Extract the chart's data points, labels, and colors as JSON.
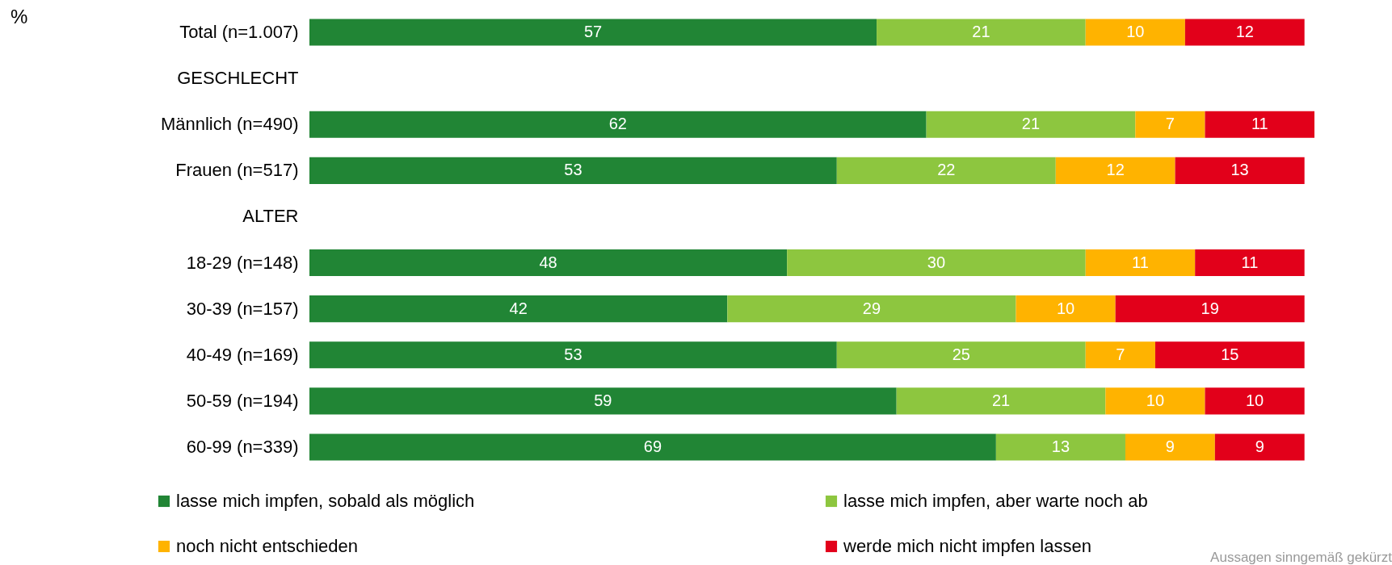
{
  "chart_data": {
    "type": "bar",
    "orientation": "horizontal",
    "stacked": true,
    "data_labels": true,
    "legend": "bottom",
    "categories": [
      "Total (n=1.007)",
      "GESCHLECHT",
      "Männlich (n=490)",
      "Frauen (n=517)",
      "ALTER",
      "18-29 (n=148)",
      "30-39 (n=157)",
      "40-49 (n=169)",
      "50-59 (n=194)",
      "60-99 (n=339)"
    ],
    "series": [
      {
        "name": "lasse mich impfen, sobald als möglich",
        "color": "#218535",
        "values": [
          57,
          null,
          62,
          53,
          null,
          48,
          42,
          53,
          59,
          69
        ]
      },
      {
        "name": "lasse mich impfen, aber warte noch ab",
        "color": "#8dc63f",
        "values": [
          21,
          null,
          21,
          22,
          null,
          30,
          29,
          25,
          21,
          13
        ]
      },
      {
        "name": "noch nicht entschieden",
        "color": "#ffb300",
        "values": [
          10,
          null,
          7,
          12,
          null,
          11,
          10,
          7,
          10,
          9
        ]
      },
      {
        "name": "werde mich nicht impfen lassen",
        "color": "#e2001a",
        "values": [
          12,
          null,
          11,
          13,
          null,
          11,
          19,
          15,
          10,
          9
        ]
      }
    ],
    "annotations": [
      "%",
      "Aussagen sinngemäß gekürzt"
    ]
  }
}
